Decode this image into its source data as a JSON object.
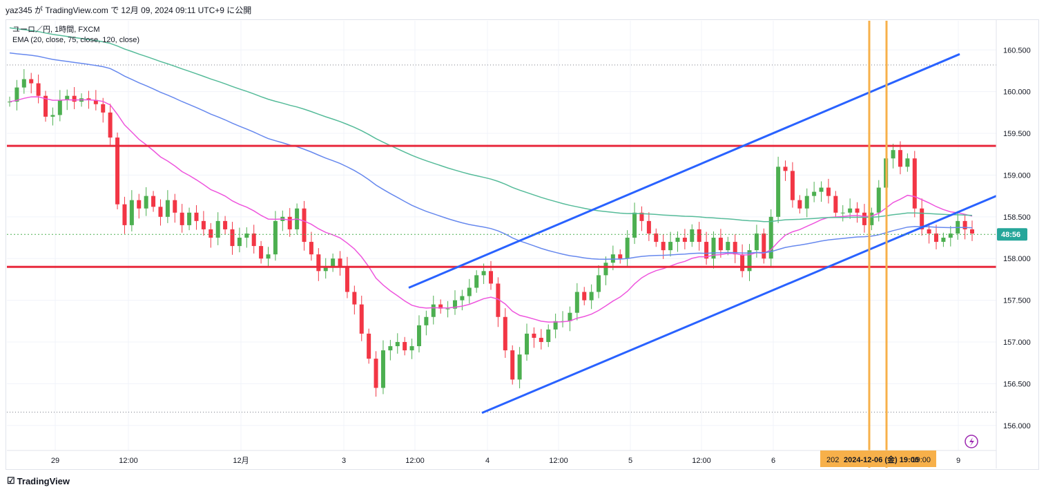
{
  "header": {
    "published": "yaz345 が TradingView.com で 12月 09, 2024 09:11 UTC+9 に公開"
  },
  "legend": {
    "symbol": "ユーロ／円, 1時間, FXCM",
    "indicator": "EMA (20, close, 75, close, 120, close)"
  },
  "footer": {
    "brand": "TradingView",
    "logo_icon": "tradingview-logo-icon"
  },
  "colors": {
    "up": "#4caf50",
    "down": "#f23645",
    "ema20": "#ee55dd",
    "ema75": "#6688ee",
    "ema120": "#55bb99",
    "channel": "#2962ff",
    "horizontal": "#e8293c",
    "vertical": "#f7b04a",
    "price_tag": "#26a69a"
  },
  "chart_data": {
    "type": "candlestick",
    "symbol": "ユーロ／円",
    "interval": "1時間",
    "source": "FXCM",
    "ylim": [
      155.7,
      160.85
    ],
    "price_ticks": [
      "160.500",
      "160.000",
      "159.500",
      "159.000",
      "158.500",
      "158.000",
      "157.500",
      "157.000",
      "156.500",
      "156.000"
    ],
    "x_ticks": [
      "29",
      "12:00",
      "12月",
      "3",
      "12:00",
      "4",
      "12:00",
      "5",
      "12:00",
      "6",
      "9"
    ],
    "current_price_tag": "48:56",
    "current_price": 158.29,
    "crosshair_label": "2024-12-06 (金) 19:00",
    "crosshair_label_left": "202",
    "crosshair_label_right": "19:00",
    "horizontal_levels": [
      159.35,
      157.9
    ],
    "upper_high_level": 160.32,
    "lower_low_level": 156.16,
    "channel_lines": [
      {
        "from": [
          0,
          157.65
        ],
        "to": [
          1,
          160.45
        ]
      },
      {
        "from": [
          0,
          156.15
        ],
        "to": [
          1,
          158.75
        ]
      }
    ],
    "ema_labels": [
      "EMA 20",
      "EMA 75",
      "EMA 120"
    ],
    "candles_note": "approximate hourly OHLC path",
    "price_path": [
      159.88,
      160.05,
      160.15,
      160.1,
      159.95,
      159.7,
      159.72,
      159.9,
      159.95,
      159.88,
      159.92,
      159.9,
      159.85,
      159.75,
      159.45,
      158.65,
      158.4,
      158.7,
      158.6,
      158.75,
      158.62,
      158.5,
      158.7,
      158.55,
      158.4,
      158.55,
      158.45,
      158.35,
      158.25,
      158.45,
      158.35,
      158.15,
      158.25,
      158.3,
      158.15,
      158.0,
      158.05,
      158.45,
      158.5,
      158.35,
      158.6,
      158.2,
      158.05,
      157.85,
      157.9,
      158.0,
      157.9,
      157.6,
      157.45,
      157.1,
      156.8,
      156.45,
      156.9,
      156.95,
      157.0,
      156.9,
      156.95,
      157.2,
      157.3,
      157.45,
      157.4,
      157.4,
      157.5,
      157.55,
      157.65,
      157.8,
      157.85,
      157.7,
      157.3,
      156.9,
      156.55,
      156.85,
      157.1,
      157.05,
      157.0,
      157.15,
      157.25,
      157.25,
      157.35,
      157.6,
      157.5,
      157.6,
      157.8,
      157.95,
      158.05,
      158.0,
      158.25,
      158.55,
      158.45,
      158.3,
      158.2,
      158.1,
      158.2,
      158.25,
      158.2,
      158.35,
      158.2,
      158.0,
      158.25,
      158.1,
      158.2,
      158.05,
      157.85,
      158.1,
      158.3,
      158.0,
      158.5,
      159.1,
      159.05,
      158.7,
      158.6,
      158.75,
      158.8,
      158.85,
      158.75,
      158.55,
      158.55,
      158.6,
      158.55,
      158.4,
      158.55,
      158.85,
      159.2,
      159.3,
      159.1,
      159.2,
      158.6,
      158.35,
      158.3,
      158.2,
      158.25,
      158.3,
      158.45,
      158.35,
      158.3
    ]
  }
}
